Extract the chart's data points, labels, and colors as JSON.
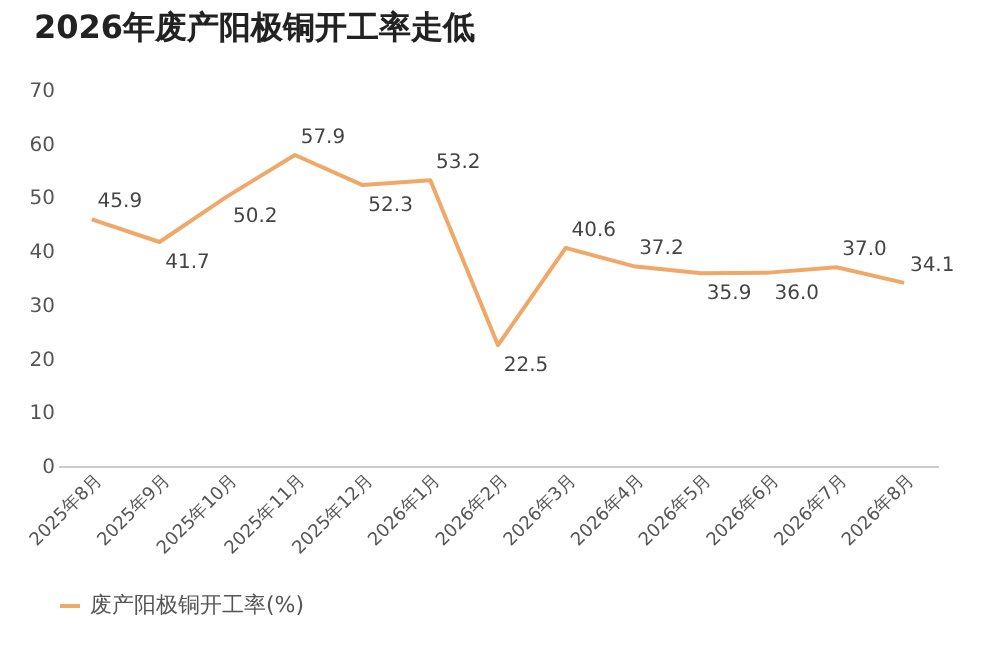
{
  "chart_data": {
    "type": "line",
    "title": "2026年废产阳极铜开工率走低",
    "categories": [
      "2025年8月",
      "2025年9月",
      "2025年10月",
      "2025年11月",
      "2025年12月",
      "2026年1月",
      "2026年2月",
      "2026年3月",
      "2026年4月",
      "2026年5月",
      "2026年6月",
      "2026年7月",
      "2026年8月"
    ],
    "series": [
      {
        "name": "废产阳极铜开工率(%)",
        "color": "#f0a868",
        "values": [
          45.9,
          41.7,
          50.2,
          57.9,
          52.3,
          53.2,
          22.5,
          40.6,
          37.2,
          35.9,
          36.0,
          37.0,
          34.1
        ],
        "value_labels": [
          "45.9",
          "41.7",
          "50.2",
          "57.9",
          "52.3",
          "53.2",
          "22.5",
          "40.6",
          "37.2",
          "35.9",
          "36.0",
          "37.0",
          "34.1"
        ]
      }
    ],
    "ylim": [
      0,
      70
    ],
    "yticks": [
      0,
      10,
      20,
      30,
      40,
      50,
      60,
      70
    ],
    "grid": false,
    "legend": "bottom",
    "marker": "none",
    "line_style": "solid"
  }
}
